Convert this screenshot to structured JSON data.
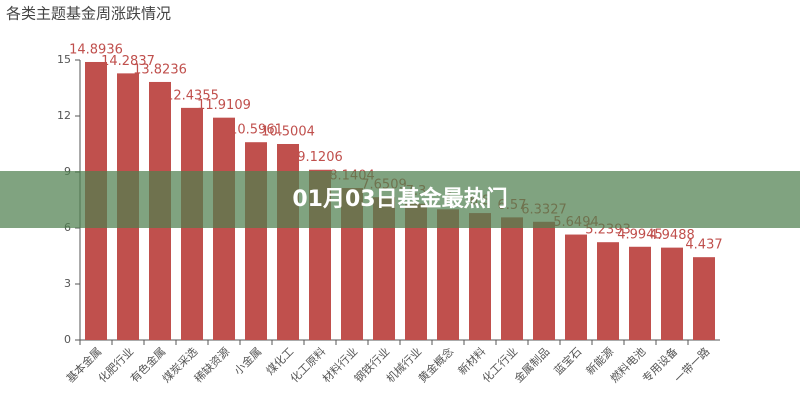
{
  "banner": "01月03日基金最热门",
  "chart_data": {
    "type": "bar",
    "title": "各类主题基金周涨跌情况",
    "categories": [
      "基本金属",
      "化肥行业",
      "有色金属",
      "煤炭采选",
      "稀缺资源",
      "小金属",
      "煤化工",
      "化工原料",
      "材料行业",
      "钢铁行业",
      "机械行业",
      "黄金概念",
      "新材料",
      "化工行业",
      "金属制品",
      "蓝宝石",
      "新能源",
      "燃料电池",
      "专用设备",
      "一带一路"
    ],
    "values": [
      14.8936,
      14.2837,
      13.8236,
      12.4355,
      11.9109,
      10.5961,
      10.5004,
      9.1206,
      8.1404,
      7.6509,
      7.3,
      7.0,
      6.8,
      6.57,
      6.3327,
      5.6494,
      5.2393,
      4.9945,
      4.9488,
      4.437
    ],
    "color": "#c0504d",
    "ylim": [
      0,
      15
    ],
    "yticks": [
      0,
      3,
      6,
      9,
      12,
      15
    ]
  }
}
